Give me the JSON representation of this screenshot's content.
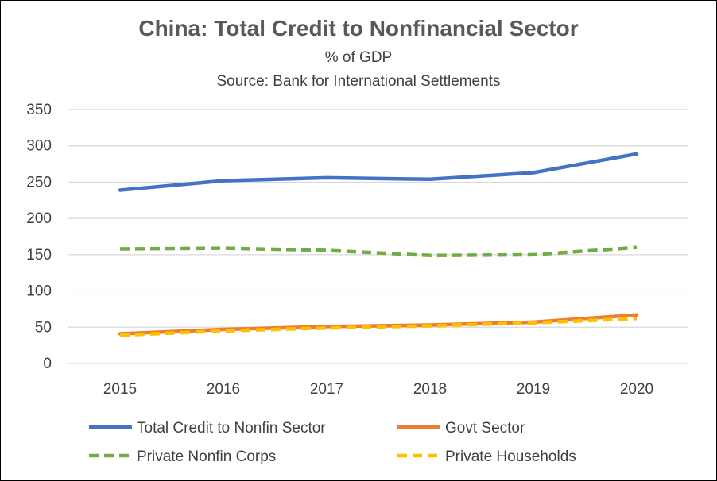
{
  "chart_data": {
    "type": "line",
    "title": "China:  Total Credit to Nonfinancial Sector",
    "subtitle": "% of GDP",
    "source": "Source:  Bank for International Settlements",
    "xlabel": "",
    "ylabel": "",
    "x": [
      "2015",
      "2016",
      "2017",
      "2018",
      "2019",
      "2020"
    ],
    "ylim": [
      0,
      350
    ],
    "yticks": [
      0,
      50,
      100,
      150,
      200,
      250,
      300,
      350
    ],
    "grid": true,
    "legend_position": "bottom",
    "series": [
      {
        "name": "Total Credit to Nonfin Sector",
        "values": [
          239,
          252,
          256,
          254,
          263,
          289
        ],
        "color": "#4472C4",
        "style": "solid"
      },
      {
        "name": "Govt Sector",
        "values": [
          41,
          47,
          51,
          53,
          57,
          67
        ],
        "color": "#ED7D31",
        "style": "solid"
      },
      {
        "name": "Private Nonfin Corps",
        "values": [
          158,
          159,
          156,
          149,
          150,
          160
        ],
        "color": "#70AD47",
        "style": "dashed"
      },
      {
        "name": "Private Households",
        "values": [
          39,
          45,
          49,
          52,
          56,
          62
        ],
        "color": "#FFC000",
        "style": "dashed"
      }
    ]
  }
}
